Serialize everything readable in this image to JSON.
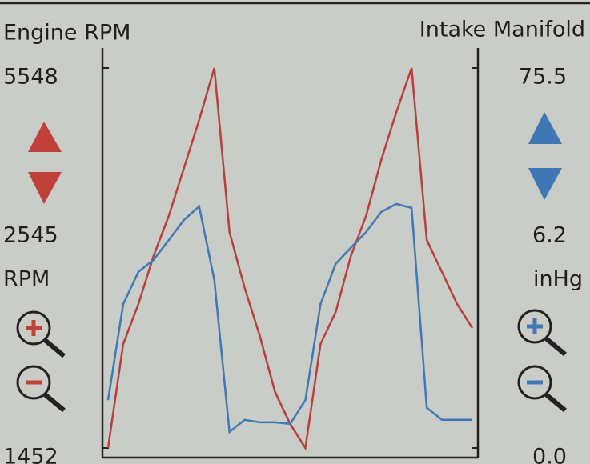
{
  "chart_data": {
    "type": "line",
    "y_label": "Engine RPM",
    "y2_label": "Intake Manifold",
    "y_unit": "RPM",
    "y2_unit": "inHg",
    "y_readout": 2545,
    "y2_readout": 6.2,
    "ylim": [
      1452,
      5548
    ],
    "yticks": [
      1452,
      5548
    ],
    "y2lim": [
      0,
      75.5
    ],
    "y2ticks": [
      {
        "value": 0,
        "label": "0.0"
      },
      75.5
    ],
    "series": [
      {
        "name": "Engine RPM",
        "color": "#b8403c",
        "values": [
          1452,
          2573,
          3004,
          3522,
          3953,
          4470,
          4987,
          5548,
          3780,
          3177,
          2659,
          2056,
          1711,
          1452,
          2573,
          2918,
          3522,
          3953,
          4556,
          5074,
          5548,
          3694,
          3349,
          3004,
          2745
        ]
      },
      {
        "name": "Intake Manifold",
        "color": "#3f78b4",
        "axis": "y2",
        "values": [
          9.5,
          28.6,
          35.0,
          37.4,
          41.3,
          45.3,
          48.0,
          33.4,
          3.2,
          5.6,
          5.1,
          5.1,
          4.8,
          9.5,
          28.6,
          36.6,
          39.8,
          42.9,
          46.9,
          48.5,
          47.7,
          8.0,
          5.6,
          5.6,
          5.6
        ]
      }
    ]
  }
}
